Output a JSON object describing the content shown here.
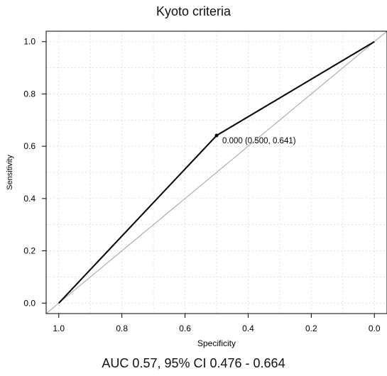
{
  "chart_data": {
    "type": "line",
    "title": "Kyoto criteria",
    "xlabel": "Specificity",
    "ylabel": "Sensitivity",
    "xlim": [
      1.0,
      0.0
    ],
    "ylim": [
      0.0,
      1.0
    ],
    "x_reversed": true,
    "grid": true,
    "x_ticks": [
      "1.0",
      "0.8",
      "0.6",
      "0.4",
      "0.2",
      "0.0"
    ],
    "y_ticks": [
      "0.0",
      "0.2",
      "0.4",
      "0.6",
      "0.8",
      "1.0"
    ],
    "series": [
      {
        "color": "#000000",
        "x": [
          1.0,
          0.5,
          0.0
        ],
        "y": [
          0.0,
          0.641,
          1.0
        ]
      },
      {
        "color": "#a0a0a0",
        "x": [
          1.0,
          0.0
        ],
        "y": [
          0.0,
          1.0
        ]
      }
    ],
    "annotations": [
      {
        "x": 0.5,
        "y": 0.641,
        "text": "0.000 (0.500, 0.641)"
      }
    ]
  },
  "footer": "AUC 0.57, 95% CI 0.476 - 0.664"
}
